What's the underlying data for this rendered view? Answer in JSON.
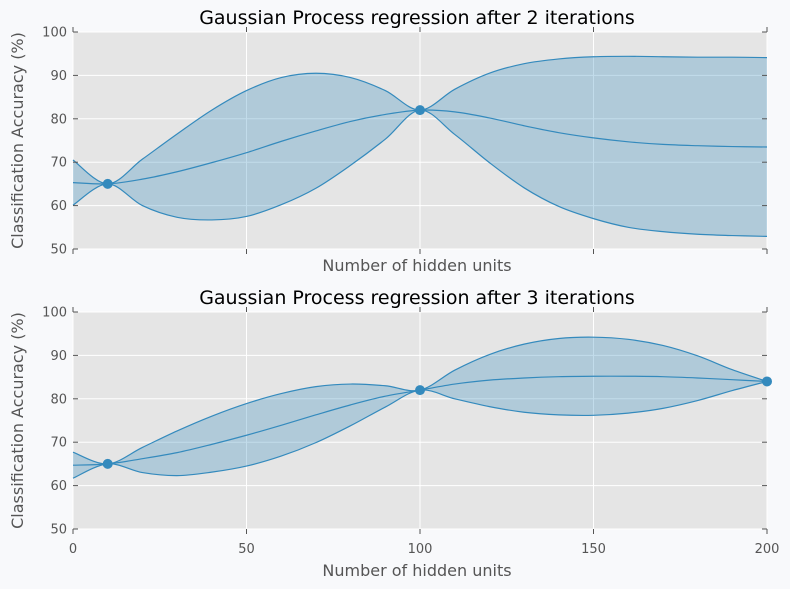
{
  "chart_data": [
    {
      "type": "line",
      "title": "Gaussian Process regression after 2 iterations",
      "xlabel": "Number of hidden units",
      "ylabel": "Classification Accuracy (%)",
      "xlim": [
        0,
        200
      ],
      "ylim": [
        50,
        100
      ],
      "xticks": [
        0,
        50,
        100,
        150,
        200
      ],
      "show_xtick_labels": false,
      "yticks": [
        50,
        60,
        70,
        80,
        90,
        100
      ],
      "grid": true,
      "observations": [
        {
          "x": 10,
          "y": 65
        },
        {
          "x": 100,
          "y": 82
        }
      ],
      "x": [
        0,
        10,
        20,
        30,
        40,
        50,
        60,
        70,
        80,
        90,
        100,
        110,
        120,
        130,
        140,
        150,
        160,
        170,
        180,
        190,
        200
      ],
      "mean": [
        65.3,
        65.0,
        66.1,
        67.8,
        69.9,
        72.2,
        74.8,
        77.2,
        79.4,
        81.0,
        82.0,
        81.6,
        80.2,
        78.4,
        76.8,
        75.6,
        74.7,
        74.1,
        73.8,
        73.6,
        73.5
      ],
      "upper": [
        70.5,
        65.0,
        70.7,
        76.5,
        82.0,
        86.5,
        89.5,
        90.5,
        89.5,
        86.5,
        82.0,
        86.8,
        90.5,
        92.7,
        93.8,
        94.3,
        94.4,
        94.3,
        94.2,
        94.2,
        94.1
      ],
      "lower": [
        60.1,
        65.0,
        60.0,
        57.3,
        56.7,
        57.5,
        60.2,
        64.0,
        69.3,
        75.3,
        82.0,
        76.4,
        69.9,
        64.1,
        59.8,
        57.0,
        55.0,
        54.0,
        53.4,
        53.1,
        52.9
      ]
    },
    {
      "type": "line",
      "title": "Gaussian Process regression after 3 iterations",
      "xlabel": "Number of hidden units",
      "ylabel": "Classification Accuracy (%)",
      "xlim": [
        0,
        200
      ],
      "ylim": [
        50,
        100
      ],
      "xticks": [
        0,
        50,
        100,
        150,
        200
      ],
      "show_xtick_labels": true,
      "yticks": [
        50,
        60,
        70,
        80,
        90,
        100
      ],
      "grid": true,
      "observations": [
        {
          "x": 10,
          "y": 65
        },
        {
          "x": 100,
          "y": 82
        },
        {
          "x": 200,
          "y": 84
        }
      ],
      "x": [
        0,
        10,
        20,
        30,
        40,
        50,
        60,
        70,
        80,
        90,
        100,
        110,
        120,
        130,
        140,
        150,
        160,
        170,
        180,
        190,
        200
      ],
      "mean": [
        64.7,
        65.0,
        66.2,
        67.6,
        69.5,
        71.6,
        73.9,
        76.3,
        78.6,
        80.6,
        82.0,
        83.4,
        84.3,
        84.8,
        85.1,
        85.2,
        85.2,
        85.1,
        84.8,
        84.4,
        84.0
      ],
      "upper": [
        67.7,
        65.0,
        68.8,
        72.6,
        76.0,
        78.9,
        81.2,
        82.8,
        83.4,
        83.0,
        82.0,
        86.6,
        90.2,
        92.6,
        93.9,
        94.2,
        93.7,
        92.3,
        89.9,
        86.7,
        84.0
      ],
      "lower": [
        61.7,
        65.0,
        63.0,
        62.3,
        63.1,
        64.5,
        66.8,
        69.9,
        73.8,
        78.1,
        82.0,
        80.0,
        78.2,
        76.9,
        76.3,
        76.2,
        76.7,
        77.8,
        79.6,
        81.9,
        84.0
      ]
    }
  ]
}
